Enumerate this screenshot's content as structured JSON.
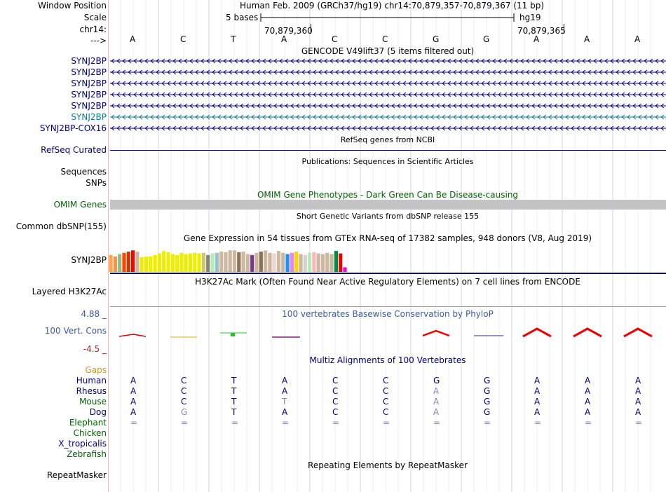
{
  "header": {
    "window_position_label": "Window Position",
    "window_position_text": "Human Feb. 2009 (GRCh37/hg19)   chr14:70,879,357-70,879,367 (11 bp)",
    "scale_label": "Scale",
    "scale_text": "5 bases",
    "scale_assembly": "hg19",
    "chrom_label": "chr14:",
    "coord_left": "70,879,360",
    "coord_right": "70,879,365",
    "strand_label": "--->",
    "bases": [
      "A",
      "C",
      "T",
      "A",
      "C",
      "C",
      "G",
      "G",
      "A",
      "A",
      "A"
    ]
  },
  "gencode": {
    "title": "GENCODE V49lift37 (5 items filtered out)",
    "genes": [
      {
        "label": "SYNJ2BP",
        "color": "#000080"
      },
      {
        "label": "SYNJ2BP",
        "color": "#000080"
      },
      {
        "label": "SYNJ2BP",
        "color": "#000080"
      },
      {
        "label": "SYNJ2BP",
        "color": "#000080"
      },
      {
        "label": "SYNJ2BP",
        "color": "#000080"
      },
      {
        "label": "SYNJ2BP",
        "color": "#0e7b93"
      },
      {
        "label": "SYNJ2BP-COX16",
        "color": "#000080"
      }
    ]
  },
  "refseq": {
    "title": "RefSeq genes from NCBI",
    "label": "RefSeq Curated"
  },
  "publications": {
    "title": "Publications: Sequences in Scientific Articles",
    "sequences_label": "Sequences",
    "snps_label": "SNPs"
  },
  "omim": {
    "title": "OMIM Gene Phenotypes - Dark Green Can Be Disease-causing",
    "label": "OMIM Genes"
  },
  "dbsnp": {
    "title": "Short Genetic Variants from dbSNP release 155",
    "label": "Common dbSNP(155)"
  },
  "gtex": {
    "title": "Gene Expression in 54 tissues from GTEx RNA-seq of 17382 samples, 948 donors (V8, Aug 2019)",
    "label": "SYNJ2BP",
    "bars": [
      {
        "v": 0.55,
        "c": "#ffa54f"
      },
      {
        "v": 0.5,
        "c": "#ee9a49"
      },
      {
        "v": 0.58,
        "c": "#8fbc8f"
      },
      {
        "v": 0.62,
        "c": "#ff4500"
      },
      {
        "v": 0.66,
        "c": "#cd3700"
      },
      {
        "v": 0.7,
        "c": "#ff0000"
      },
      {
        "v": 0.66,
        "c": "#cdb79e"
      },
      {
        "v": 0.48,
        "c": "#eeee00"
      },
      {
        "v": 0.5,
        "c": "#eeee00"
      },
      {
        "v": 0.5,
        "c": "#eeee00"
      },
      {
        "v": 0.55,
        "c": "#eeee00"
      },
      {
        "v": 0.6,
        "c": "#eeee00"
      },
      {
        "v": 0.68,
        "c": "#eeee00"
      },
      {
        "v": 0.64,
        "c": "#eeee00"
      },
      {
        "v": 0.58,
        "c": "#eeee00"
      },
      {
        "v": 0.55,
        "c": "#eeee00"
      },
      {
        "v": 0.62,
        "c": "#eeee00"
      },
      {
        "v": 0.58,
        "c": "#eeee00"
      },
      {
        "v": 0.6,
        "c": "#eeee00"
      },
      {
        "v": 0.62,
        "c": "#eeee00"
      },
      {
        "v": 0.6,
        "c": "#eeee00"
      },
      {
        "v": 0.62,
        "c": "#cdc673"
      },
      {
        "v": 0.55,
        "c": "#8b8378"
      },
      {
        "v": 0.6,
        "c": "#b4eeb4"
      },
      {
        "v": 0.62,
        "c": "#9ac0cd"
      },
      {
        "v": 0.66,
        "c": "#cdb79e"
      },
      {
        "v": 0.64,
        "c": "#cdb79e"
      },
      {
        "v": 0.7,
        "c": "#cdb79e"
      },
      {
        "v": 0.7,
        "c": "#cdb79e"
      },
      {
        "v": 0.64,
        "c": "#8b7355"
      },
      {
        "v": 0.66,
        "c": "#cdb79e"
      },
      {
        "v": 0.58,
        "c": "#cdb79e"
      },
      {
        "v": 0.55,
        "c": "#7a378b"
      },
      {
        "v": 0.62,
        "c": "#cdb79e"
      },
      {
        "v": 0.66,
        "c": "#8b7355"
      },
      {
        "v": 0.7,
        "c": "#cdb79e"
      },
      {
        "v": 0.62,
        "c": "#cdb79e"
      },
      {
        "v": 0.6,
        "c": "#eed5d2"
      },
      {
        "v": 0.68,
        "c": "#cdb79e"
      },
      {
        "v": 0.62,
        "c": "#cdb79e"
      },
      {
        "v": 0.58,
        "c": "#1e90ff"
      },
      {
        "v": 0.62,
        "c": "#ee82ee"
      },
      {
        "v": 0.66,
        "c": "#ffd700"
      },
      {
        "v": 0.58,
        "c": "#cdb79e"
      },
      {
        "v": 0.55,
        "c": "#d3d3d3"
      },
      {
        "v": 0.62,
        "c": "#b4eeb4"
      },
      {
        "v": 0.64,
        "c": "#ffb6c1"
      },
      {
        "v": 0.6,
        "c": "#cdb79e"
      },
      {
        "v": 0.58,
        "c": "#cdb79e"
      },
      {
        "v": 0.62,
        "c": "#cdb79e"
      },
      {
        "v": 0.58,
        "c": "#cdb79e"
      },
      {
        "v": 0.68,
        "c": "#008b45"
      },
      {
        "v": 0.6,
        "c": "#ee0000"
      },
      {
        "v": 0.15,
        "c": "#ee00ee"
      }
    ]
  },
  "h3k27ac": {
    "title": "H3K27Ac Mark (Often Found Near Active Regulatory Elements) on 7 cell lines from ENCODE",
    "label": "Layered H3K27Ac"
  },
  "conservation": {
    "title": "100 vertebrates Basewise Conservation by PhyloP",
    "label": "100 Vert. Cons",
    "ymax": "4.88 _",
    "ymin": "-4.5 _"
  },
  "multiz": {
    "title": "Multiz Alignments of 100 Vertebrates",
    "gaps_label": "Gaps",
    "species": [
      {
        "name": "Human",
        "seq": [
          "A",
          "C",
          "T",
          "A",
          "C",
          "C",
          "G",
          "G",
          "A",
          "A",
          "A"
        ],
        "color": "#000080"
      },
      {
        "name": "Rhesus",
        "seq": [
          "A",
          "C",
          "T",
          "A",
          "C",
          "C",
          "A",
          "G",
          "A",
          "A",
          "A"
        ],
        "color": "#000080"
      },
      {
        "name": "Mouse",
        "seq": [
          "A",
          "C",
          "T",
          "T",
          "C",
          "C",
          "A",
          "G",
          "A",
          "A",
          "A"
        ],
        "color": "#006400"
      },
      {
        "name": "Dog",
        "seq": [
          "A",
          "G",
          "T",
          "A",
          "C",
          "C",
          "A",
          "G",
          "A",
          "A",
          "A"
        ],
        "color": "#000080"
      },
      {
        "name": "Elephant",
        "seq": [
          "=",
          "=",
          "=",
          "=",
          "=",
          "=",
          "=",
          "=",
          "=",
          "=",
          "="
        ],
        "color": "#006400"
      },
      {
        "name": "Chicken",
        "seq": [],
        "color": "#006400"
      },
      {
        "name": "X_tropicalis",
        "seq": [],
        "color": "#000080"
      },
      {
        "name": "Zebrafish",
        "seq": [],
        "color": "#006400"
      }
    ]
  },
  "repeatmasker": {
    "title": "Repeating Elements by RepeatMasker",
    "label": "RepeatMasker"
  }
}
